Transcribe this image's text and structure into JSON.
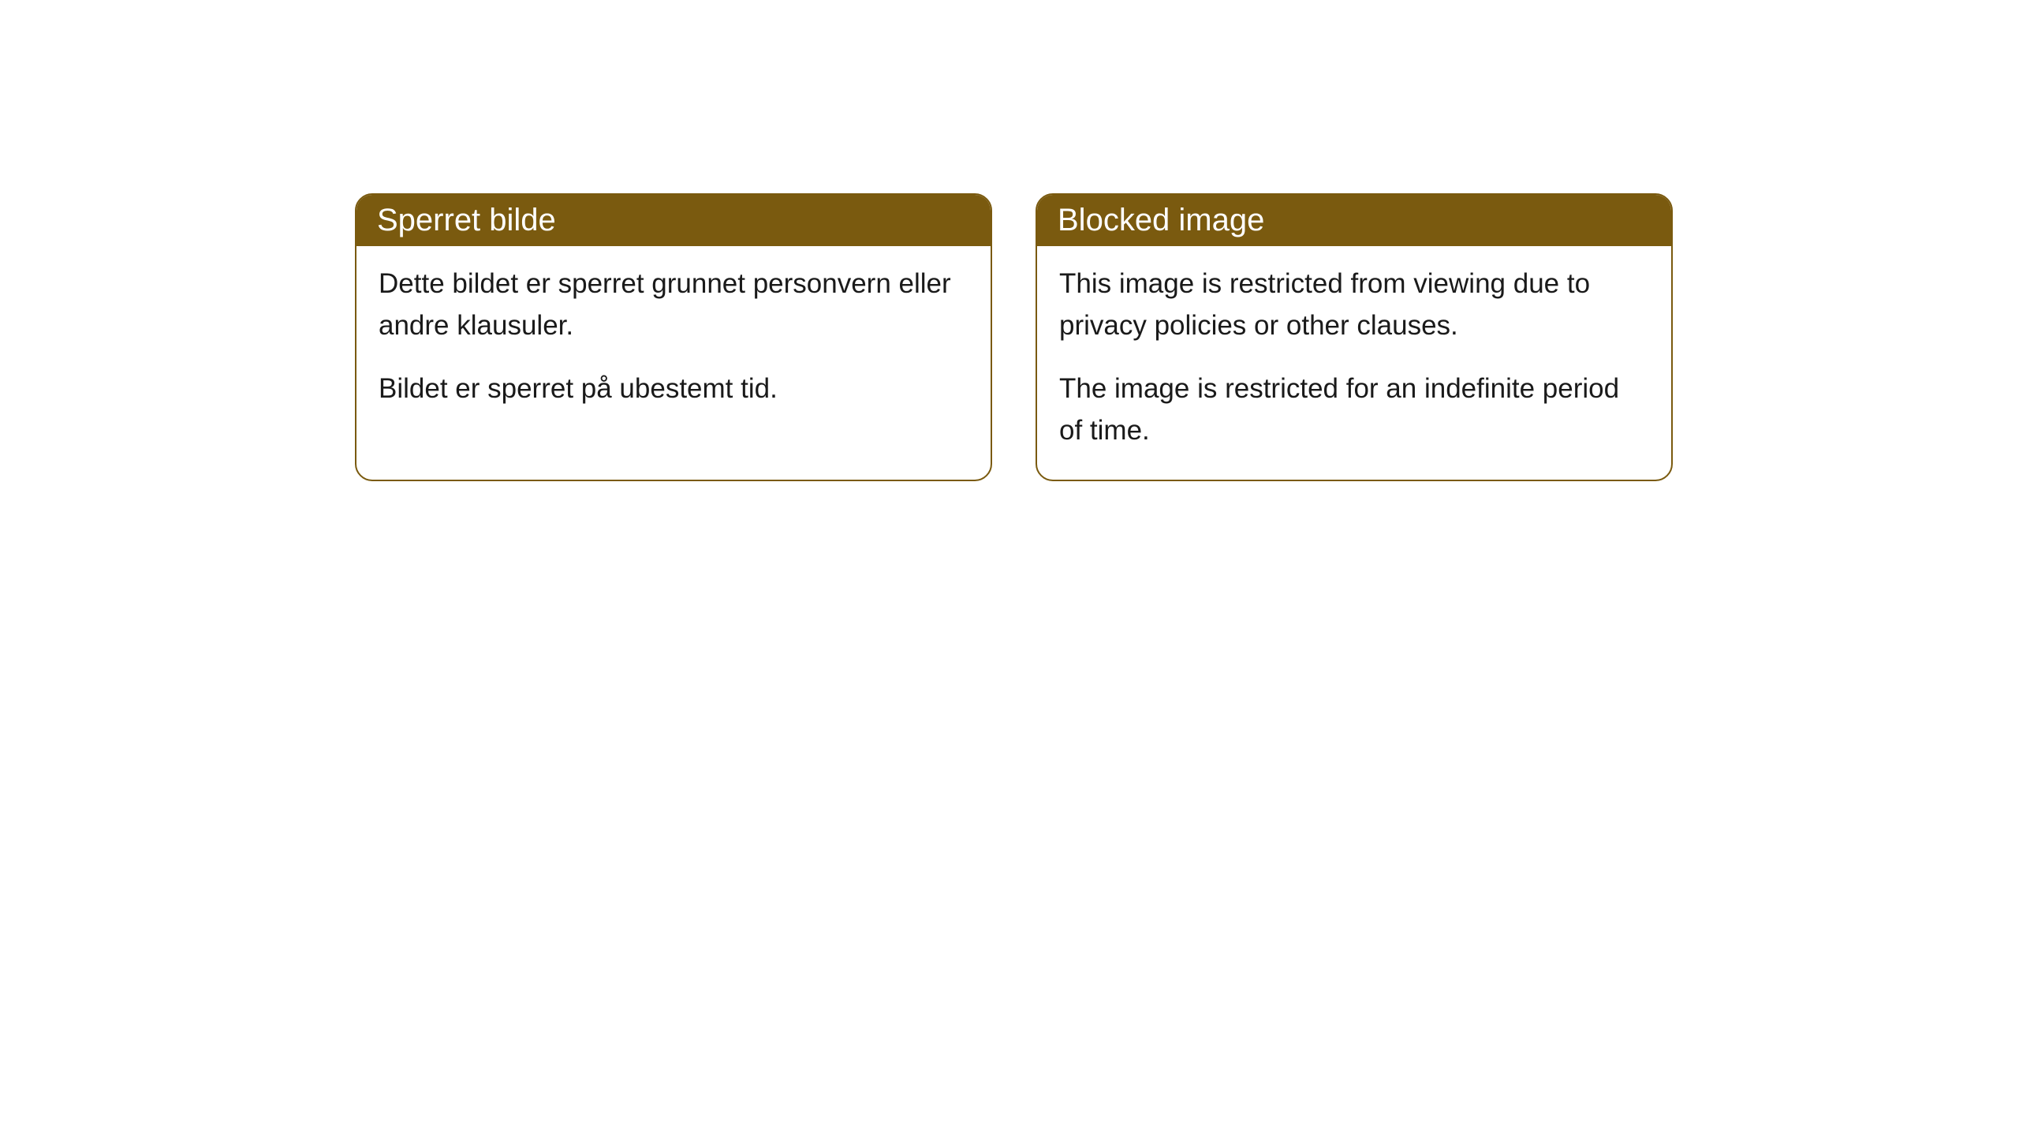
{
  "cards": [
    {
      "header": "Sperret bilde",
      "paragraph1": "Dette bildet er sperret grunnet personvern eller andre klausuler.",
      "paragraph2": "Bildet er sperret på ubestemt tid."
    },
    {
      "header": "Blocked image",
      "paragraph1": "This image is restricted from viewing due to privacy policies or other clauses.",
      "paragraph2": "The image is restricted for an indefinite period of time."
    }
  ],
  "styling": {
    "header_background_color": "#7a5a0f",
    "header_text_color": "#ffffff",
    "card_border_color": "#7a5a0f",
    "card_background_color": "#ffffff",
    "body_text_color": "#1a1a1a",
    "page_background_color": "#ffffff",
    "header_fontsize": 40,
    "body_fontsize": 35,
    "border_radius": 22,
    "border_width": 2
  }
}
